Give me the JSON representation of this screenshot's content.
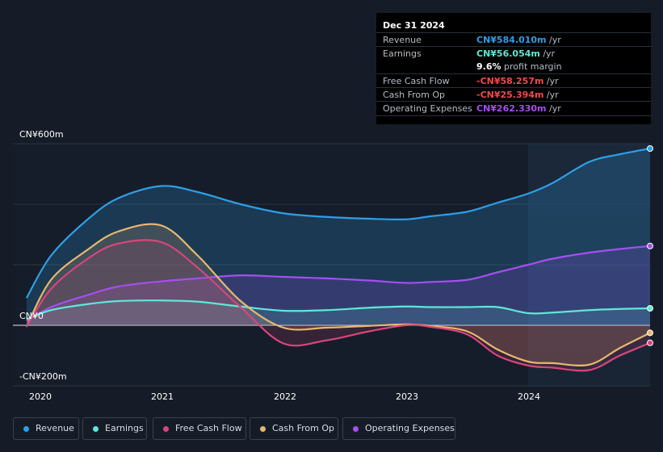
{
  "tooltip": {
    "date": "Dec 31 2024",
    "rows": [
      {
        "label": "Revenue",
        "value": "CN¥584.010m",
        "unit": "/yr",
        "color": "#2e9fe6"
      },
      {
        "label": "Earnings",
        "value": "CN¥56.054m",
        "unit": "/yr",
        "color": "#5ee8d6"
      },
      {
        "label": "",
        "value": "9.6%",
        "unit": "profit margin",
        "color": "#ffffff"
      },
      {
        "label": "Free Cash Flow",
        "value": "-CN¥58.257m",
        "unit": "/yr",
        "color": "#ee4b4b"
      },
      {
        "label": "Cash From Op",
        "value": "-CN¥25.394m",
        "unit": "/yr",
        "color": "#ee4b4b"
      },
      {
        "label": "Operating Expenses",
        "value": "CN¥262.330m",
        "unit": "/yr",
        "color": "#a64ef0"
      }
    ]
  },
  "chart_data": {
    "type": "line",
    "title": "",
    "xlabel": "",
    "ylabel": "",
    "ylim": [
      -200,
      600
    ],
    "y_tick_labels": [
      "CN¥600m",
      "CN¥0",
      "-CN¥200m"
    ],
    "x_tick_labels": [
      "2020",
      "2021",
      "2022",
      "2023",
      "2024"
    ],
    "x": [
      2019.9,
      2020.1,
      2020.4,
      2020.65,
      2021.0,
      2021.3,
      2021.65,
      2022.0,
      2022.35,
      2022.7,
      2023.0,
      2023.2,
      2023.5,
      2023.75,
      2024.0,
      2024.2,
      2024.5,
      2024.75,
      2025.0
    ],
    "series": [
      {
        "name": "Revenue",
        "color": "#2e9fe6",
        "values": [
          90,
          230,
          350,
          420,
          460,
          440,
          400,
          370,
          358,
          352,
          350,
          360,
          375,
          405,
          435,
          470,
          540,
          565,
          584
        ]
      },
      {
        "name": "Earnings",
        "color": "#5ee8d6",
        "values": [
          20,
          50,
          70,
          80,
          82,
          78,
          62,
          48,
          50,
          58,
          62,
          60,
          60,
          60,
          40,
          42,
          50,
          54,
          56
        ]
      },
      {
        "name": "Free Cash Flow",
        "color": "#d8457c",
        "values": [
          -5,
          120,
          220,
          270,
          275,
          190,
          60,
          -60,
          -50,
          -20,
          0,
          -5,
          -30,
          -100,
          -133,
          -140,
          -148,
          -100,
          -58
        ]
      },
      {
        "name": "Cash From Op",
        "color": "#e8b870",
        "values": [
          -5,
          150,
          250,
          310,
          330,
          230,
          80,
          -8,
          -8,
          -2,
          3,
          -2,
          -20,
          -80,
          -120,
          -125,
          -130,
          -75,
          -25
        ]
      },
      {
        "name": "Operating Expenses",
        "color": "#a64ef0",
        "values": [
          15,
          60,
          100,
          128,
          145,
          155,
          165,
          160,
          155,
          148,
          140,
          143,
          150,
          175,
          200,
          220,
          240,
          252,
          262
        ]
      }
    ],
    "tooltip_x": 2025.0
  },
  "legend": [
    {
      "label": "Revenue",
      "color": "#2e9fe6"
    },
    {
      "label": "Earnings",
      "color": "#5ee8d6"
    },
    {
      "label": "Free Cash Flow",
      "color": "#d8457c"
    },
    {
      "label": "Cash From Op",
      "color": "#e8b870"
    },
    {
      "label": "Operating Expenses",
      "color": "#a64ef0"
    }
  ]
}
